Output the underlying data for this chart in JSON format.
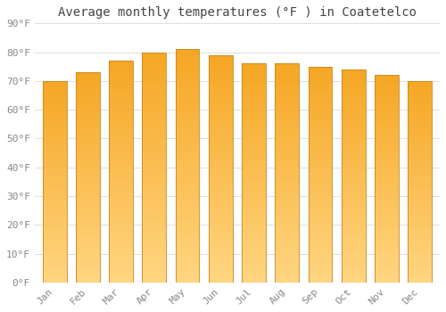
{
  "title": "Average monthly temperatures (°F ) in Coatetelco",
  "months": [
    "Jan",
    "Feb",
    "Mar",
    "Apr",
    "May",
    "Jun",
    "Jul",
    "Aug",
    "Sep",
    "Oct",
    "Nov",
    "Dec"
  ],
  "values": [
    70,
    73,
    77,
    80,
    81,
    79,
    76,
    76,
    75,
    74,
    72,
    70
  ],
  "bar_color_top": "#F5A623",
  "bar_color_bottom": "#FFD580",
  "bar_edge_color": "#C8861A",
  "background_color": "#FFFFFF",
  "grid_color": "#DDDDDD",
  "ylim": [
    0,
    90
  ],
  "yticks": [
    0,
    10,
    20,
    30,
    40,
    50,
    60,
    70,
    80,
    90
  ],
  "title_fontsize": 10,
  "tick_fontsize": 8,
  "font_family": "monospace"
}
